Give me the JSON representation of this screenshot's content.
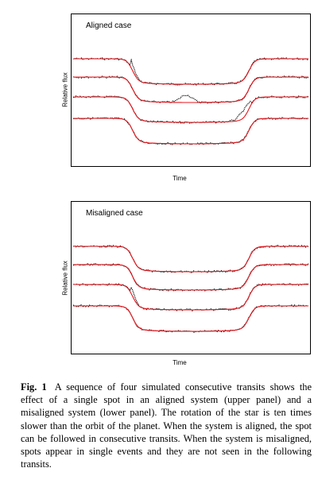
{
  "chart_data": [
    {
      "type": "line",
      "title": "Aligned case",
      "xlabel": "Time",
      "ylabel": "Relative flux",
      "series": [
        {
          "spot": {
            "position": 0.24,
            "width": 0.04,
            "amplitude": 0.3
          }
        },
        {
          "spot": {
            "position": 0.48,
            "width": 0.05,
            "amplitude": 0.3
          }
        },
        {
          "spot": {
            "position": 0.73,
            "width": 0.05,
            "amplitude": 0.3
          }
        },
        {
          "spot": null
        }
      ],
      "colors": {
        "model": "#e8141b",
        "observations": "#000000"
      }
    },
    {
      "type": "line",
      "title": "Misaligned case",
      "xlabel": "Time",
      "ylabel": "Relative flux",
      "series": [
        {
          "spot": null
        },
        {
          "spot": null
        },
        {
          "spot": {
            "position": 0.24,
            "width": 0.04,
            "amplitude": 0.3
          }
        },
        {
          "spot": null
        }
      ],
      "colors": {
        "model": "#e8141b",
        "observations": "#000000"
      }
    }
  ],
  "caption": {
    "label": "Fig. 1",
    "text": "A sequence of four simulated consecutive transits shows the effect of a single spot in an aligned system (upper panel) and a misaligned system (lower panel). The rotation of the star is ten times slower than the orbit of the planet. When the system is aligned, the spot can be followed in consecutive transits. When the system is misaligned, spots appear in single events and they are not seen in the following transits."
  }
}
